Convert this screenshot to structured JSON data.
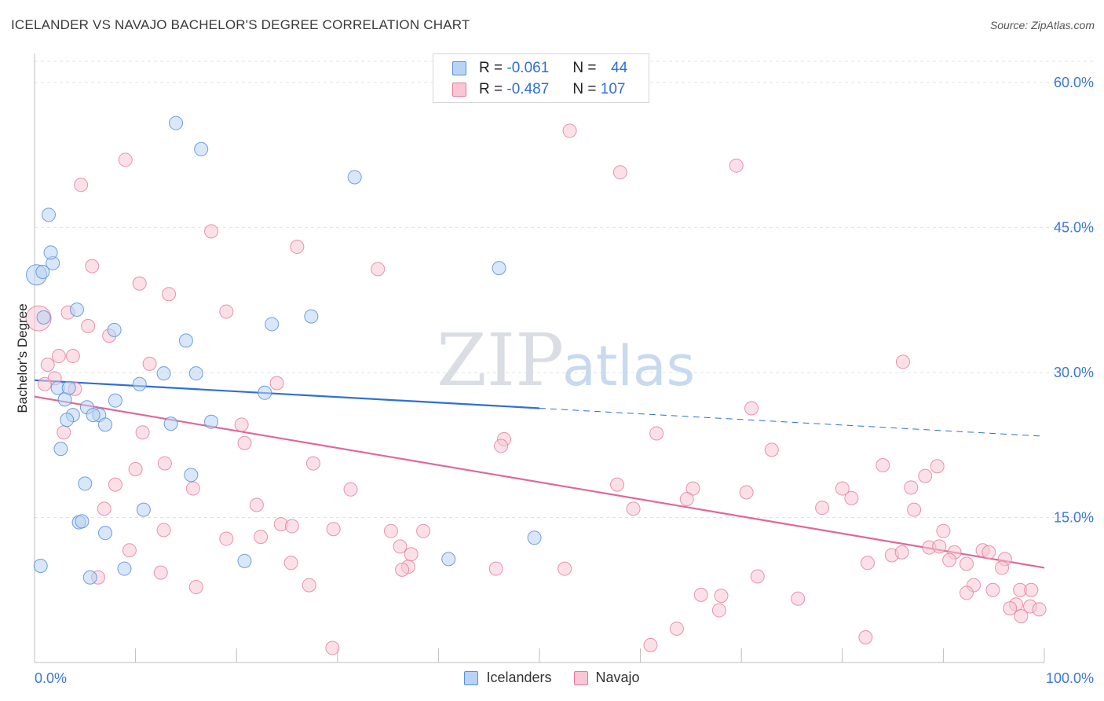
{
  "title": "ICELANDER VS NAVAJO BACHELOR'S DEGREE CORRELATION CHART",
  "source": "Source: ZipAtlas.com",
  "watermark": {
    "zip": "ZIP",
    "atlas": "atlas"
  },
  "legend": {
    "rows": [
      {
        "r_label": "R =",
        "r_value": "-0.061",
        "n_label": "N =",
        "n_value": "44"
      },
      {
        "r_label": "R =",
        "r_value": "-0.487",
        "n_label": "N =",
        "n_value": "107"
      }
    ]
  },
  "bottom_legend": {
    "series1": "Icelanders",
    "series2": "Navajo"
  },
  "colors": {
    "blue_fill": "#b8d3f4",
    "blue_stroke": "#5b8fd6",
    "blue_line": "#2f6fd6",
    "pink_fill": "#f8c6d4",
    "pink_stroke": "#e27a9c",
    "pink_line": "#e0679a",
    "grid": "#e3e3e3",
    "axis_label": "#3b78d8"
  },
  "chart_data": {
    "type": "scatter",
    "title": "ICELANDER VS NAVAJO BACHELOR'S DEGREE CORRELATION CHART",
    "xlabel": "",
    "ylabel": "Bachelor's Degree",
    "xlim": [
      0,
      100
    ],
    "ylim": [
      0,
      63
    ],
    "x_tick_labels": [
      "0.0%",
      "100.0%"
    ],
    "y_ticks": [
      15,
      30,
      45,
      60
    ],
    "y_tick_labels": [
      "15.0%",
      "30.0%",
      "45.0%",
      "60.0%"
    ],
    "series": [
      {
        "name": "Icelanders",
        "color": "blue",
        "R": -0.061,
        "N": 44,
        "trend": {
          "x0": 0,
          "y0": 29.2,
          "x1": 50,
          "y1": 26.3,
          "dash_to_x": 100,
          "dash_to_y": 23.4
        },
        "points": [
          [
            0.2,
            40.1
          ],
          [
            0.8,
            40.4
          ],
          [
            1.8,
            41.3
          ],
          [
            1.6,
            42.4
          ],
          [
            1.4,
            46.3
          ],
          [
            0.9,
            35.7
          ],
          [
            14,
            55.8
          ],
          [
            16.5,
            53.1
          ],
          [
            31.7,
            50.2
          ],
          [
            46,
            40.8
          ],
          [
            4.2,
            36.5
          ],
          [
            7.9,
            34.4
          ],
          [
            23.5,
            35
          ],
          [
            27.4,
            35.8
          ],
          [
            15,
            33.3
          ],
          [
            12.8,
            29.9
          ],
          [
            10.4,
            28.8
          ],
          [
            16,
            29.9
          ],
          [
            2.3,
            28.4
          ],
          [
            3.4,
            28.4
          ],
          [
            8,
            27.1
          ],
          [
            3,
            27.2
          ],
          [
            5.2,
            26.4
          ],
          [
            3.8,
            25.6
          ],
          [
            3.2,
            25.1
          ],
          [
            6.4,
            25.6
          ],
          [
            5.8,
            25.6
          ],
          [
            7,
            24.6
          ],
          [
            13.5,
            24.7
          ],
          [
            17.5,
            24.9
          ],
          [
            22.8,
            27.9
          ],
          [
            2.6,
            22.1
          ],
          [
            15.5,
            19.4
          ],
          [
            5,
            18.5
          ],
          [
            10.8,
            15.8
          ],
          [
            4.4,
            14.5
          ],
          [
            4.7,
            14.6
          ],
          [
            7,
            13.4
          ],
          [
            49.5,
            12.9
          ],
          [
            20.8,
            10.5
          ],
          [
            41,
            10.7
          ],
          [
            8.9,
            9.7
          ],
          [
            5.5,
            8.8
          ],
          [
            0.6,
            10
          ]
        ]
      },
      {
        "name": "Navajo",
        "color": "pink",
        "R": -0.487,
        "N": 107,
        "trend": {
          "x0": 0,
          "y0": 27.5,
          "x1": 100,
          "y1": 9.8
        },
        "points": [
          [
            0.4,
            35.6
          ],
          [
            53,
            55
          ],
          [
            9,
            52
          ],
          [
            58,
            50.7
          ],
          [
            69.5,
            51.4
          ],
          [
            4.6,
            49.4
          ],
          [
            17.5,
            44.6
          ],
          [
            26,
            43
          ],
          [
            34,
            40.7
          ],
          [
            5.7,
            41
          ],
          [
            10.4,
            39.2
          ],
          [
            13.3,
            38.1
          ],
          [
            19,
            36.3
          ],
          [
            3.3,
            36.2
          ],
          [
            5.3,
            34.8
          ],
          [
            7.4,
            33.8
          ],
          [
            3.8,
            31.7
          ],
          [
            2.4,
            31.7
          ],
          [
            1.3,
            30.8
          ],
          [
            11.4,
            30.9
          ],
          [
            86,
            31.1
          ],
          [
            2,
            29.4
          ],
          [
            1,
            28.8
          ],
          [
            24,
            28.9
          ],
          [
            4,
            28.3
          ],
          [
            71,
            26.3
          ],
          [
            20.5,
            24.6
          ],
          [
            2.9,
            23.8
          ],
          [
            10.7,
            23.8
          ],
          [
            46.5,
            23.1
          ],
          [
            61.6,
            23.7
          ],
          [
            20.8,
            22.7
          ],
          [
            46.2,
            22.4
          ],
          [
            73,
            22
          ],
          [
            12.9,
            20.6
          ],
          [
            27.6,
            20.6
          ],
          [
            10,
            20
          ],
          [
            84,
            20.4
          ],
          [
            89.4,
            20.3
          ],
          [
            88.2,
            19.3
          ],
          [
            8,
            18.4
          ],
          [
            15.7,
            18
          ],
          [
            31.3,
            17.9
          ],
          [
            57.7,
            18.4
          ],
          [
            65.2,
            18
          ],
          [
            70.5,
            17.6
          ],
          [
            80,
            18
          ],
          [
            86.8,
            18.1
          ],
          [
            64.6,
            16.9
          ],
          [
            22,
            16.3
          ],
          [
            6.9,
            15.9
          ],
          [
            59.3,
            15.9
          ],
          [
            78,
            16
          ],
          [
            80.9,
            17
          ],
          [
            87.1,
            15.8
          ],
          [
            24.4,
            14.3
          ],
          [
            25.5,
            14.1
          ],
          [
            29.6,
            13.8
          ],
          [
            35.3,
            13.6
          ],
          [
            38.5,
            13.6
          ],
          [
            12.8,
            13.7
          ],
          [
            90,
            13.6
          ],
          [
            19,
            12.8
          ],
          [
            22.4,
            13
          ],
          [
            88.6,
            11.9
          ],
          [
            89.6,
            12
          ],
          [
            36.2,
            12
          ],
          [
            37.3,
            11.2
          ],
          [
            9.4,
            11.6
          ],
          [
            84.9,
            11.1
          ],
          [
            85.9,
            11.4
          ],
          [
            91.1,
            11.4
          ],
          [
            93.9,
            11.6
          ],
          [
            94.5,
            11.4
          ],
          [
            90.6,
            10.6
          ],
          [
            96.1,
            10.7
          ],
          [
            25.4,
            10.3
          ],
          [
            37,
            9.9
          ],
          [
            36.4,
            9.6
          ],
          [
            45.7,
            9.7
          ],
          [
            52.5,
            9.7
          ],
          [
            82.5,
            10.3
          ],
          [
            92.3,
            10.2
          ],
          [
            95.8,
            9.8
          ],
          [
            12.5,
            9.3
          ],
          [
            6.3,
            8.8
          ],
          [
            71.6,
            8.9
          ],
          [
            27.2,
            8
          ],
          [
            16,
            7.8
          ],
          [
            93,
            8
          ],
          [
            92.3,
            7.2
          ],
          [
            94.9,
            7.5
          ],
          [
            66,
            7
          ],
          [
            68,
            6.9
          ],
          [
            75.6,
            6.6
          ],
          [
            97.6,
            7.5
          ],
          [
            98.7,
            7.5
          ],
          [
            97.2,
            6
          ],
          [
            98.6,
            5.8
          ],
          [
            99.5,
            5.5
          ],
          [
            67.8,
            5.4
          ],
          [
            96.6,
            5.6
          ],
          [
            97.7,
            4.8
          ],
          [
            63.6,
            3.5
          ],
          [
            82.3,
            2.6
          ],
          [
            61,
            1.8
          ],
          [
            29.5,
            1.5
          ]
        ]
      }
    ]
  }
}
